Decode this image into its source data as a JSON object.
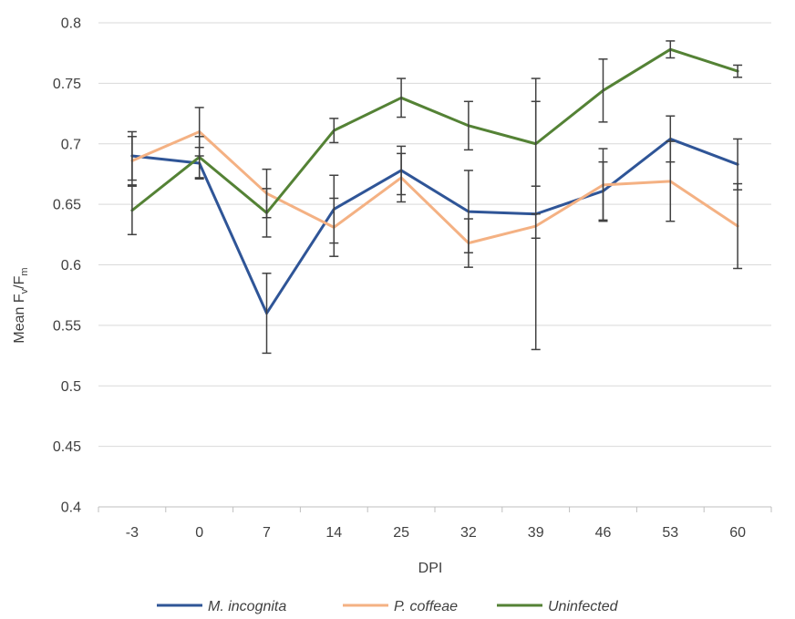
{
  "chart_data": {
    "type": "line",
    "categories": [
      "-3",
      "0",
      "7",
      "14",
      "25",
      "32",
      "39",
      "46",
      "53",
      "60"
    ],
    "xlabel": "DPI",
    "ylabel": {
      "main": "Mean F",
      "sub1": "v",
      "mid": "/F",
      "sub2": "m"
    },
    "ylim": [
      0.4,
      0.8
    ],
    "yticks": [
      "0.4",
      "0.45",
      "0.5",
      "0.55",
      "0.6",
      "0.65",
      "0.7",
      "0.75",
      "0.8"
    ],
    "grid": true,
    "legend_position": "bottom",
    "series": [
      {
        "name": "M. incognita",
        "color": "#2F5597",
        "values": [
          0.69,
          0.684,
          0.56,
          0.646,
          0.678,
          0.644,
          0.642,
          0.661,
          0.704,
          0.683
        ],
        "error": [
          0.02,
          0.013,
          0.033,
          0.028,
          0.02,
          0.034,
          0.112,
          0.024,
          0.019,
          0.021
        ]
      },
      {
        "name": "P. coffeae",
        "color": "#F4B183",
        "values": [
          0.686,
          0.71,
          0.659,
          0.631,
          0.672,
          0.618,
          0.632,
          0.666,
          0.669,
          0.632
        ],
        "error": [
          0.02,
          0.02,
          0.02,
          0.024,
          0.02,
          0.02,
          0.01,
          0.03,
          0.033,
          0.035
        ]
      },
      {
        "name": "Uninfected",
        "color": "#548235",
        "values": [
          0.645,
          0.689,
          0.643,
          0.711,
          0.738,
          0.715,
          0.7,
          0.744,
          0.778,
          0.76
        ],
        "error": [
          0.02,
          0.017,
          0.02,
          0.01,
          0.016,
          0.02,
          0.035,
          0.026,
          0.007,
          0.005
        ]
      }
    ]
  }
}
